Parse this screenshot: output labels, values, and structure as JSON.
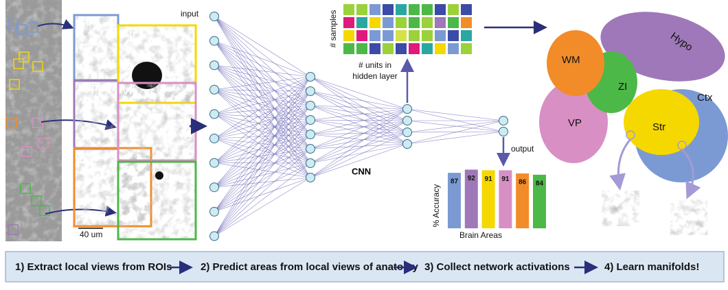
{
  "panel1": {
    "region_labels": [
      "Ctx",
      "Str",
      "Hypo",
      "VP",
      "WM",
      "ZI"
    ],
    "scale_bar": "40 um"
  },
  "network": {
    "input_label": "input",
    "model_label": "CNN",
    "output_label": "output"
  },
  "activations": {
    "y_label": "# samples",
    "x_label_lines": [
      "# units in",
      "hidden layer"
    ]
  },
  "accuracy_chart": {
    "y_label": "% Accuracy",
    "x_label": "Brain Areas",
    "values": [
      87,
      92,
      91,
      91,
      86,
      84
    ],
    "colors": [
      "#7b9ad4",
      "#9e78b8",
      "#f5d800",
      "#d88fc4",
      "#f28c28",
      "#4cb848"
    ]
  },
  "manifold": {
    "labels": [
      "WM",
      "ZI",
      "Hypo",
      "VP",
      "Str",
      "Ctx"
    ]
  },
  "steps": [
    "1)  Extract local views from ROIs",
    "2)  Predict areas from local views of anatomy",
    "3)  Collect network activations",
    "4)  Learn manifolds!"
  ]
}
